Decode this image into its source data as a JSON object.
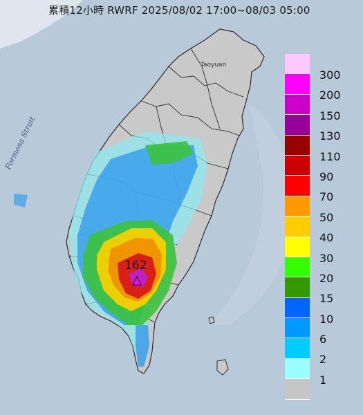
{
  "header": {
    "title": "累積12小時 RWRF 2025/08/02 17:00~08/03 05:00"
  },
  "map": {
    "sea_label": "Formosa Strait",
    "city_label": "Taoyuan",
    "max_value": "162",
    "colors": {
      "sea": "#b9c8d8",
      "land": "#c9c9c9",
      "rain_light": "#8ee8f0",
      "rain_blue": "#3aa0ea",
      "rain_green": "#3cc23c",
      "rain_yellow": "#f5d000",
      "rain_orange": "#f09000",
      "rain_red": "#d81818",
      "rain_magenta": "#c020c0"
    }
  },
  "legend": {
    "items": [
      {
        "label": "300",
        "color": "#ffc8ff"
      },
      {
        "label": "200",
        "color": "#ff00ff"
      },
      {
        "label": "150",
        "color": "#cc00cc"
      },
      {
        "label": "130",
        "color": "#990099"
      },
      {
        "label": "110",
        "color": "#990000"
      },
      {
        "label": "90",
        "color": "#cc0000"
      },
      {
        "label": "70",
        "color": "#ff0000"
      },
      {
        "label": "50",
        "color": "#ff9900"
      },
      {
        "label": "40",
        "color": "#ffcc00"
      },
      {
        "label": "30",
        "color": "#ffff00"
      },
      {
        "label": "20",
        "color": "#33ff00"
      },
      {
        "label": "15",
        "color": "#339900"
      },
      {
        "label": "10",
        "color": "#0066ff"
      },
      {
        "label": "6",
        "color": "#0099ff"
      },
      {
        "label": "2",
        "color": "#00ccff"
      },
      {
        "label": "1",
        "color": "#99ffff"
      },
      {
        "label": "",
        "color": "#c6c6c6"
      }
    ]
  }
}
